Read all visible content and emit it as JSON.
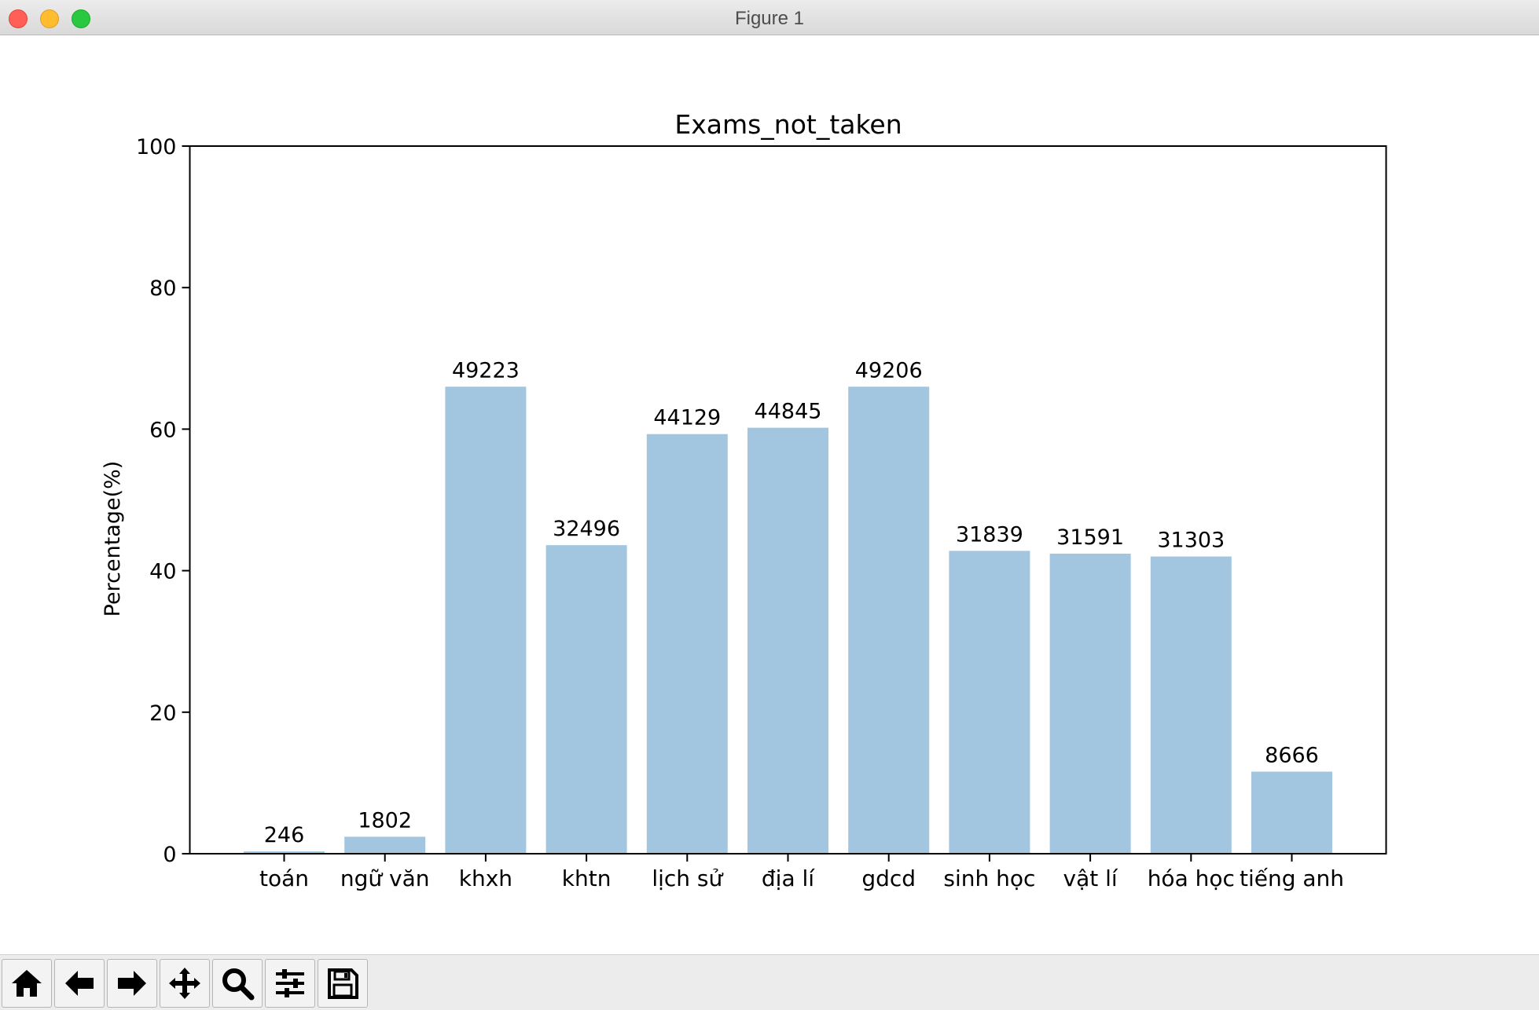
{
  "window": {
    "title": "Figure 1"
  },
  "toolbar": {
    "buttons": [
      {
        "name": "home-button",
        "icon": "home-icon"
      },
      {
        "name": "back-button",
        "icon": "arrow-left-icon"
      },
      {
        "name": "forward-button",
        "icon": "arrow-right-icon"
      },
      {
        "name": "pan-button",
        "icon": "move-icon"
      },
      {
        "name": "zoom-button",
        "icon": "magnifier-icon"
      },
      {
        "name": "configure-subplots-button",
        "icon": "sliders-icon"
      },
      {
        "name": "save-button",
        "icon": "floppy-disk-icon"
      }
    ]
  },
  "chart_data": {
    "type": "bar",
    "title": "Exams_not_taken",
    "xlabel": "",
    "ylabel": "Percentage(%)",
    "ylim": [
      0,
      100
    ],
    "yticks": [
      0,
      20,
      40,
      60,
      80,
      100
    ],
    "categories": [
      "toán",
      "ngữ văn",
      "khxh",
      "khtn",
      "lịch sử",
      "địa lí",
      "gdcd",
      "sinh học",
      "vật lí",
      "hóa học",
      "tiếng anh"
    ],
    "values": [
      0.33,
      2.4,
      66,
      43.6,
      59.3,
      60.2,
      66,
      42.8,
      42.4,
      42.0,
      11.6
    ],
    "labels": [
      "246",
      "1802",
      "49223",
      "32496",
      "44129",
      "44845",
      "49206",
      "31839",
      "31591",
      "31303",
      "8666"
    ],
    "bar_color": "#a2c6df",
    "grid": false,
    "legend": "none"
  }
}
